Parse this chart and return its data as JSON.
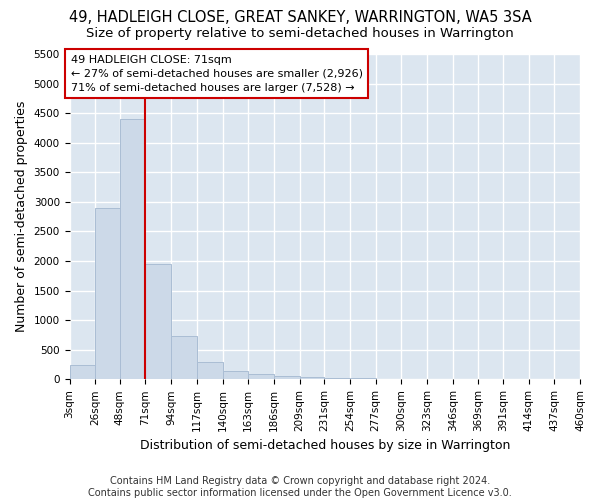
{
  "title": "49, HADLEIGH CLOSE, GREAT SANKEY, WARRINGTON, WA5 3SA",
  "subtitle": "Size of property relative to semi-detached houses in Warrington",
  "xlabel": "Distribution of semi-detached houses by size in Warrington",
  "ylabel": "Number of semi-detached properties",
  "bar_color": "#ccd9e8",
  "bar_edge_color": "#aabdd4",
  "vline_x": 71,
  "vline_color": "#cc0000",
  "annotation_text": "49 HADLEIGH CLOSE: 71sqm\n← 27% of semi-detached houses are smaller (2,926)\n71% of semi-detached houses are larger (7,528) →",
  "annotation_box_color": "#ffffff",
  "annotation_box_edge": "#cc0000",
  "footer": "Contains HM Land Registry data © Crown copyright and database right 2024.\nContains public sector information licensed under the Open Government Licence v3.0.",
  "ylim": [
    0,
    5500
  ],
  "yticks": [
    0,
    500,
    1000,
    1500,
    2000,
    2500,
    3000,
    3500,
    4000,
    4500,
    5000,
    5500
  ],
  "bin_edges": [
    3,
    26,
    48,
    71,
    94,
    117,
    140,
    163,
    186,
    209,
    231,
    254,
    277,
    300,
    323,
    346,
    369,
    391,
    414,
    437,
    460
  ],
  "bar_heights": [
    240,
    2900,
    4400,
    1950,
    730,
    300,
    140,
    90,
    60,
    40,
    30,
    20,
    0,
    0,
    0,
    0,
    0,
    0,
    0,
    0
  ],
  "background_color": "#dce6f0",
  "grid_color": "#ffffff",
  "title_fontsize": 10.5,
  "subtitle_fontsize": 9.5,
  "tick_fontsize": 7.5,
  "label_fontsize": 9,
  "footer_fontsize": 7.0,
  "fig_background": "#ffffff"
}
